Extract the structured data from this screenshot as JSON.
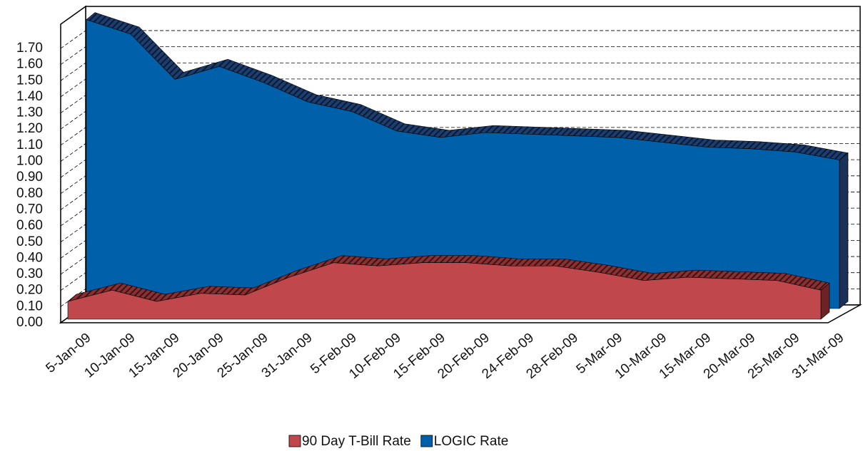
{
  "chart_data": {
    "type": "area3d",
    "categories": [
      "5-Jan-09",
      "10-Jan-09",
      "15-Jan-09",
      "20-Jan-09",
      "25-Jan-09",
      "31-Jan-09",
      "5-Feb-09",
      "10-Feb-09",
      "15-Feb-09",
      "20-Feb-09",
      "24-Feb-09",
      "28-Feb-09",
      "5-Mar-09",
      "10-Mar-09",
      "15-Mar-09",
      "20-Mar-09",
      "25-Mar-09",
      "31-Mar-09"
    ],
    "series": [
      {
        "name": "90 Day T-Bill Rate",
        "color": "#c0474b",
        "values": [
          0.11,
          0.18,
          0.11,
          0.16,
          0.15,
          0.26,
          0.35,
          0.33,
          0.35,
          0.35,
          0.33,
          0.33,
          0.29,
          0.24,
          0.26,
          0.25,
          0.24,
          0.18
        ]
      },
      {
        "name": "LOGIC Rate",
        "color": "#0061aa",
        "values": [
          1.79,
          1.7,
          1.42,
          1.5,
          1.4,
          1.28,
          1.22,
          1.1,
          1.06,
          1.09,
          1.08,
          1.07,
          1.06,
          1.03,
          1.0,
          0.99,
          0.97,
          0.92
        ]
      }
    ],
    "ylim": [
      0,
      1.85
    ],
    "yticks": [
      {
        "value": 0,
        "label": "0.00"
      },
      {
        "value": 0.1,
        "label": "0.10"
      },
      {
        "value": 0.2,
        "label": "0.20"
      },
      {
        "value": 0.3,
        "label": "0.30"
      },
      {
        "value": 0.4,
        "label": "0.40"
      },
      {
        "value": 0.5,
        "label": "0.50"
      },
      {
        "value": 0.6,
        "label": "0.60"
      },
      {
        "value": 0.7,
        "label": "0.70"
      },
      {
        "value": 0.8,
        "label": "0.80"
      },
      {
        "value": 0.9,
        "label": "0.90"
      },
      {
        "value": 1,
        "label": "1.00"
      },
      {
        "value": 1.1,
        "label": "1.10"
      },
      {
        "value": 1.2,
        "label": "1.20"
      },
      {
        "value": 1.3,
        "label": "1.30"
      },
      {
        "value": 1.4,
        "label": "1.40"
      },
      {
        "value": 1.5,
        "label": "1.50"
      },
      {
        "value": 1.6,
        "label": "1.60"
      },
      {
        "value": 1.7,
        "label": "1.70"
      }
    ],
    "grid": true,
    "legend": "bottom"
  }
}
